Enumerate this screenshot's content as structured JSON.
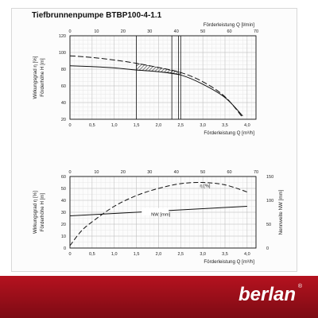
{
  "title": "Tiefbrunnenpumpe BTBP100-4-1.1",
  "brand": {
    "logo_text": "berlan",
    "registered_mark": "®",
    "primary_color": "#a8101c",
    "dark_color": "#7d0b14"
  },
  "chart_data": [
    {
      "type": "line",
      "name": "top",
      "xlabel_bottom": "Förderleistung Q [m³/h]",
      "xlabel_top": "Förderleistung Q [l/min]",
      "ylabel": [
        "Wirkungsgrad η [%]",
        "Förderhöhe H [m]"
      ],
      "xlim": [
        0,
        4.2
      ],
      "ylim": [
        20,
        120
      ],
      "x_ticks_bottom": [
        "0",
        "0,5",
        "1,0",
        "1,5",
        "2,0",
        "2,5",
        "3,0",
        "3,5",
        "4,0"
      ],
      "x_ticks_top": [
        "0",
        "10",
        "20",
        "30",
        "40",
        "50",
        "60",
        "70"
      ],
      "y_ticks": [
        "20",
        "40",
        "60",
        "80",
        "100",
        "120"
      ],
      "grid": true,
      "series": [
        {
          "x": [
            0,
            0.5,
            1,
            1.5,
            2,
            2.5,
            3,
            3.5,
            3.9
          ],
          "y": [
            96,
            94,
            91,
            87,
            82,
            76,
            65,
            47,
            22
          ]
        },
        {
          "x": [
            0,
            0.5,
            1,
            1.5,
            2,
            2.5,
            3,
            3.5,
            3.9
          ],
          "y": [
            84,
            83,
            81.5,
            79,
            77,
            73,
            62,
            46,
            24
          ]
        }
      ],
      "markers": {
        "x": [
          1.5,
          2.3,
          2.45,
          2.5
        ],
        "hatched_range": [
          1.5,
          2.5
        ]
      }
    },
    {
      "type": "line",
      "name": "bottom",
      "xlabel_bottom": "Förderleistung Q [m³/h]",
      "ylabel": [
        "Wirkungsgrad η [%]",
        "Förderhöhe H [m]"
      ],
      "ylabel_right": "Nennweite NW [mm]",
      "xlim": [
        0,
        4.2
      ],
      "ylim": [
        0,
        60
      ],
      "ylim_right": [
        0,
        150
      ],
      "x_ticks_bottom": [
        "0",
        "0,5",
        "1,0",
        "1,5",
        "2,0",
        "2,5",
        "3,0",
        "3,5",
        "4,0"
      ],
      "x_ticks_top": [
        "0",
        "10",
        "20",
        "30",
        "40",
        "50",
        "60",
        "70"
      ],
      "y_ticks": [
        "0",
        "10",
        "20",
        "30",
        "40",
        "50",
        "60"
      ],
      "y_ticks_right": [
        "0",
        "50",
        "100",
        "150"
      ],
      "grid": true,
      "annotations": [
        "η [%]",
        "NW [mm]"
      ],
      "series": [
        {
          "x": [
            0,
            0.25,
            0.5,
            1,
            1.5,
            2,
            2.5,
            3,
            3.5,
            4
          ],
          "y": [
            2,
            14,
            22,
            35,
            44,
            50,
            54,
            55,
            53,
            47
          ]
        },
        {
          "x": [
            0,
            1,
            2,
            3,
            4
          ],
          "y": [
            27,
            29,
            31,
            33,
            35
          ]
        }
      ]
    }
  ]
}
